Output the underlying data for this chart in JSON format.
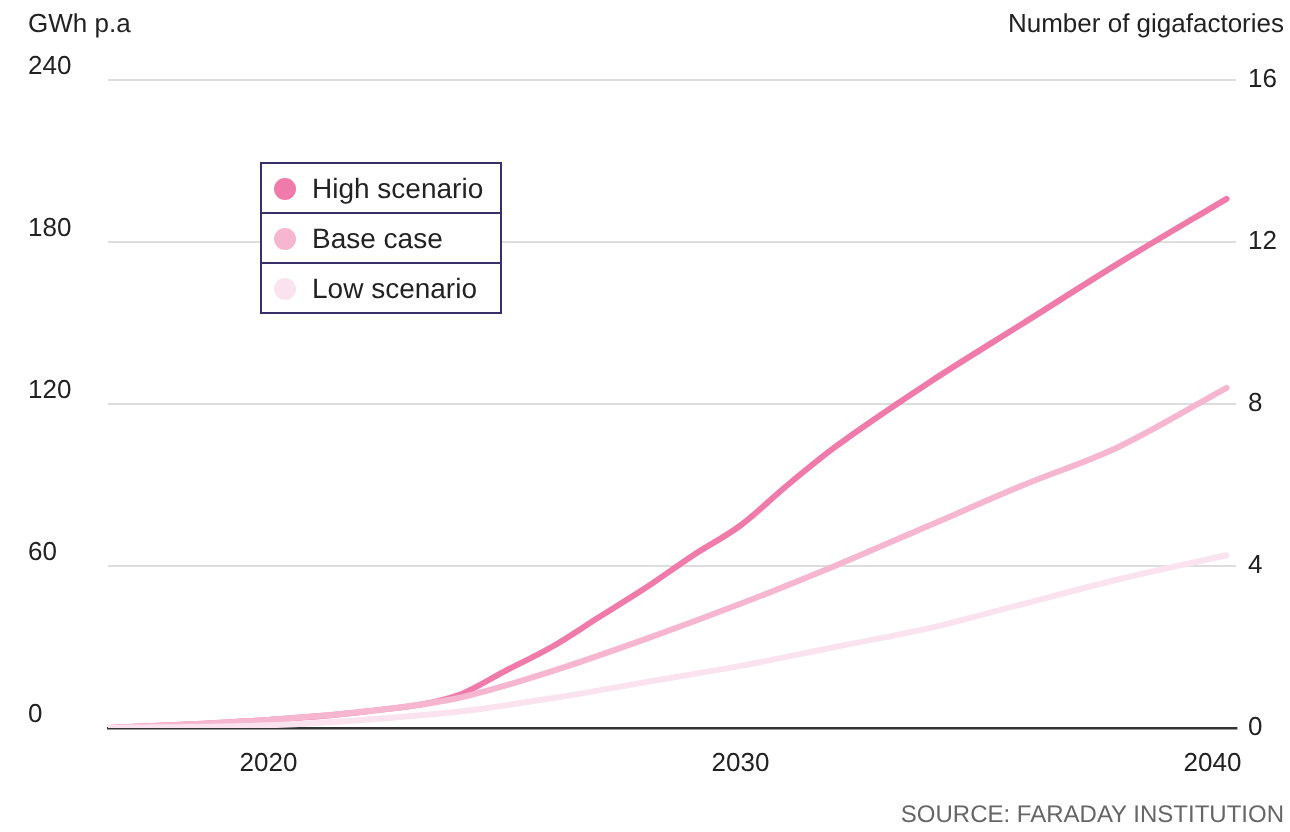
{
  "chart_data": {
    "type": "line",
    "ylabel": "GWh p.a",
    "y2label": "Number of gigafactories",
    "xlim": [
      2016.6,
      2040.5
    ],
    "xticks": [
      2020,
      2030,
      2040
    ],
    "ylim": [
      0,
      240
    ],
    "yticks": [
      0,
      60,
      120,
      180,
      240
    ],
    "y2lim": [
      0,
      16
    ],
    "y2ticks": [
      0,
      4,
      8,
      12,
      16
    ],
    "grid": "y",
    "legend": "top left",
    "marker": "none",
    "line_style": "solid",
    "annotations": [
      "SOURCE:  FARADAY INSTITUTION"
    ],
    "series": [
      {
        "name": "High scenario",
        "color": "#f07aaa",
        "x": [
          2016.6,
          2020,
          2022,
          2024,
          2025,
          2026,
          2027,
          2028,
          2029,
          2030,
          2031,
          2032,
          2034,
          2036,
          2038,
          2040.3
        ],
        "values": [
          0,
          3,
          6,
          12,
          21,
          30,
          41,
          52,
          64,
          75,
          90,
          104,
          128,
          150,
          172,
          196
        ]
      },
      {
        "name": "Base case",
        "color": "#f6b6d0",
        "x": [
          2016.6,
          2020,
          2022,
          2024,
          2026,
          2028,
          2030,
          2032,
          2034,
          2036,
          2038,
          2040.3
        ],
        "values": [
          0,
          3,
          6,
          11,
          21,
          33,
          46,
          60,
          75,
          90,
          104,
          126
        ]
      },
      {
        "name": "Low scenario",
        "color": "#fae3ee",
        "x": [
          2016.6,
          2020,
          2022,
          2024,
          2026,
          2028,
          2030,
          2032,
          2034,
          2036,
          2038,
          2040.3
        ],
        "values": [
          0,
          1,
          3,
          6,
          11,
          17,
          23,
          30,
          37,
          46,
          55,
          64
        ]
      }
    ]
  }
}
